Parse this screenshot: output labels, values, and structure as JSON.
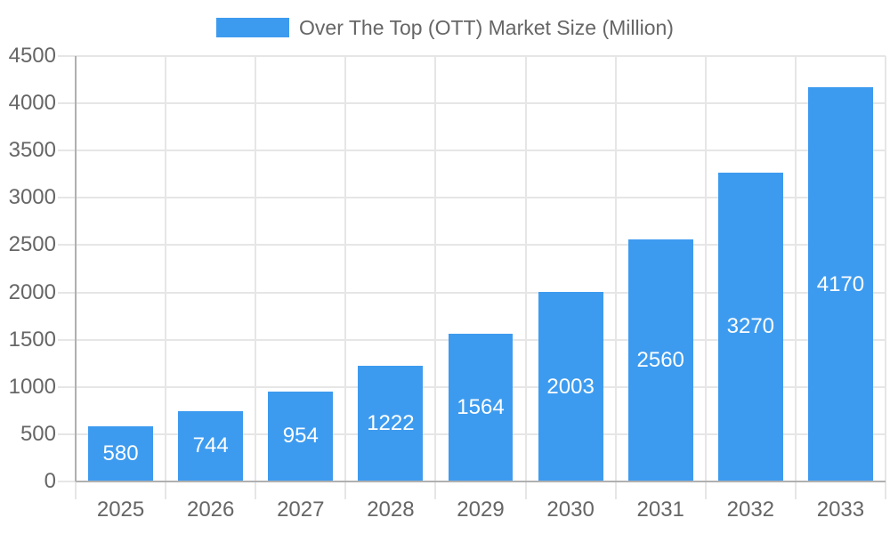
{
  "legend": {
    "label": "Over The Top (OTT) Market Size (Million)"
  },
  "chart_data": {
    "type": "bar",
    "title": "Over The Top (OTT) Market Size (Million)",
    "categories": [
      "2025",
      "2026",
      "2027",
      "2028",
      "2029",
      "2030",
      "2031",
      "2032",
      "2033"
    ],
    "values": [
      580,
      744,
      954,
      1222,
      1564,
      2003,
      2560,
      3270,
      4170
    ],
    "series": [
      {
        "name": "Over The Top (OTT) Market Size (Million)",
        "values": [
          580,
          744,
          954,
          1222,
          1564,
          2003,
          2560,
          3270,
          4170
        ]
      }
    ],
    "xlabel": "",
    "ylabel": "",
    "ylim": [
      0,
      4500
    ],
    "ytick_step": 500,
    "ytick_labels": [
      "0",
      "500",
      "1000",
      "1500",
      "2000",
      "2500",
      "3000",
      "3500",
      "4000",
      "4500"
    ],
    "grid": true,
    "legend_position": "top",
    "bar_labels_inside": true
  },
  "colors": {
    "background": "#FFFFFF",
    "bar": "#3D9BEF",
    "gridline": "#E6E6E6",
    "axis_line": "#B0B0B0",
    "tick_text": "#666666",
    "legend_text": "#666666",
    "bar_label": "#FFFFFF"
  }
}
